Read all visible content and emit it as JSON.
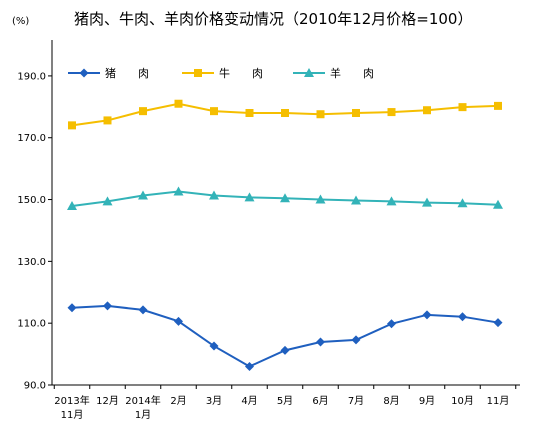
{
  "chart_data": {
    "type": "line",
    "title": "猪肉、牛肉、羊肉价格变动情况（2010年12月价格=100）",
    "unit_label": "(%)",
    "ylim": [
      90,
      200
    ],
    "yticks": [
      90,
      110,
      130,
      150,
      170,
      190
    ],
    "ytick_labels": [
      "90.0",
      "110.0",
      "130.0",
      "150.0",
      "170.0",
      "190.0"
    ],
    "categories": [
      [
        "2013年",
        "11月"
      ],
      [
        "12月"
      ],
      [
        "2014年",
        "1月"
      ],
      [
        "2月"
      ],
      [
        "3月"
      ],
      [
        "4月"
      ],
      [
        "5月"
      ],
      [
        "6月"
      ],
      [
        "7月"
      ],
      [
        "8月"
      ],
      [
        "9月"
      ],
      [
        "10月"
      ],
      [
        "11月"
      ]
    ],
    "grid": false,
    "legend_position": "top-left",
    "series": [
      {
        "name": "猪　　肉",
        "marker": "diamond",
        "color": "#1F5FBF",
        "values": [
          115.0,
          115.6,
          114.3,
          110.6,
          102.6,
          96.0,
          101.2,
          103.9,
          104.6,
          109.8,
          112.7,
          112.1,
          110.2
        ]
      },
      {
        "name": "牛　　肉",
        "marker": "square",
        "color": "#F5BE00",
        "values": [
          174.0,
          175.6,
          178.6,
          181.0,
          178.6,
          178.0,
          178.0,
          177.6,
          178.0,
          178.3,
          178.9,
          179.9,
          180.3
        ]
      },
      {
        "name": "羊　　肉",
        "marker": "triangle",
        "color": "#33B3B8",
        "values": [
          147.9,
          149.4,
          151.3,
          152.6,
          151.3,
          150.7,
          150.4,
          150.0,
          149.7,
          149.4,
          149.0,
          148.8,
          148.3
        ]
      }
    ]
  }
}
